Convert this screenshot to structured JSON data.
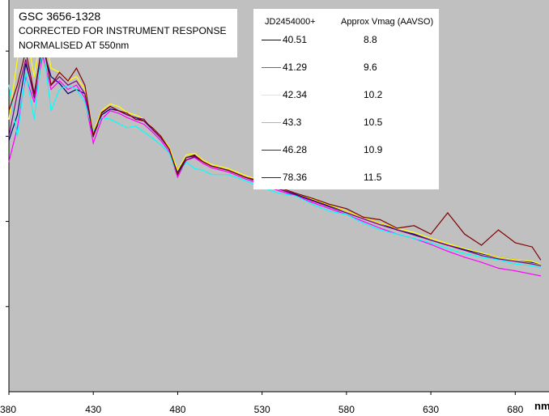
{
  "chart_data": {
    "type": "line",
    "title": "GSC 3656-1328",
    "subtitle_lines": [
      "CORRECTED FOR INSTRUMENT RESPONSE",
      "NORMALISED AT 550nm"
    ],
    "xlabel": "nm",
    "ylabel": "",
    "xlim": [
      380,
      700
    ],
    "x_ticks": [
      380,
      430,
      480,
      530,
      580,
      630,
      680
    ],
    "grid": false,
    "background": "#c0c0c0",
    "legend": {
      "placement": "top-right",
      "col1_header": "JD2454000+",
      "col2_header": "Approx Vmag (AAVSO)"
    },
    "series": [
      {
        "name": "40.51",
        "vmag": "8.8",
        "color": "#000080",
        "x": [
          380,
          385,
          390,
          395,
          400,
          405,
          410,
          415,
          420,
          425,
          430,
          435,
          440,
          445,
          450,
          455,
          460,
          465,
          470,
          475,
          480,
          485,
          490,
          495,
          500,
          510,
          520,
          530,
          540,
          550,
          560,
          570,
          580,
          590,
          600,
          610,
          620,
          630,
          640,
          650,
          660,
          670,
          680,
          690,
          695
        ],
        "y": [
          2.95,
          3.25,
          3.85,
          3.5,
          4.05,
          3.7,
          3.62,
          3.5,
          3.55,
          3.5,
          3.0,
          3.25,
          3.32,
          3.3,
          3.25,
          3.22,
          3.18,
          3.08,
          2.98,
          2.85,
          2.58,
          2.75,
          2.77,
          2.7,
          2.65,
          2.6,
          2.52,
          2.45,
          2.38,
          2.32,
          2.25,
          2.18,
          2.12,
          2.05,
          1.98,
          1.9,
          1.85,
          1.78,
          1.72,
          1.67,
          1.62,
          1.58,
          1.55,
          1.52,
          1.5
        ]
      },
      {
        "name": "41.29",
        "vmag": "9.6",
        "color": "#ff00ff",
        "x": [
          380,
          385,
          390,
          395,
          400,
          405,
          410,
          415,
          420,
          425,
          430,
          435,
          440,
          445,
          450,
          455,
          460,
          465,
          470,
          475,
          480,
          485,
          490,
          495,
          500,
          510,
          520,
          530,
          540,
          550,
          560,
          570,
          580,
          590,
          600,
          610,
          620,
          630,
          640,
          650,
          660,
          670,
          680,
          690,
          695
        ],
        "y": [
          2.7,
          3.1,
          3.7,
          3.4,
          3.95,
          3.55,
          3.65,
          3.55,
          3.6,
          3.45,
          2.92,
          3.2,
          3.3,
          3.27,
          3.22,
          3.18,
          3.14,
          3.05,
          2.95,
          2.82,
          2.52,
          2.72,
          2.75,
          2.68,
          2.63,
          2.58,
          2.5,
          2.43,
          2.36,
          2.3,
          2.22,
          2.15,
          2.08,
          2.0,
          1.92,
          1.85,
          1.8,
          1.73,
          1.65,
          1.58,
          1.52,
          1.45,
          1.42,
          1.38,
          1.36
        ]
      },
      {
        "name": "42.34",
        "vmag": "10.2",
        "color": "#ffff00",
        "x": [
          380,
          385,
          390,
          395,
          400,
          405,
          410,
          415,
          420,
          425,
          430,
          435,
          440,
          445,
          450,
          455,
          460,
          465,
          470,
          475,
          480,
          485,
          490,
          495,
          500,
          510,
          520,
          530,
          540,
          550,
          560,
          570,
          580,
          590,
          600,
          610,
          620,
          630,
          640,
          650,
          660,
          670,
          680,
          690,
          695
        ],
        "y": [
          3.2,
          3.9,
          4.25,
          3.7,
          4.35,
          3.8,
          3.75,
          3.65,
          3.7,
          3.55,
          3.05,
          3.3,
          3.38,
          3.35,
          3.28,
          3.25,
          3.2,
          3.1,
          3.0,
          2.87,
          2.6,
          2.78,
          2.8,
          2.72,
          2.67,
          2.62,
          2.54,
          2.47,
          2.4,
          2.33,
          2.26,
          2.19,
          2.12,
          2.05,
          1.98,
          1.92,
          1.87,
          1.8,
          1.74,
          1.68,
          1.63,
          1.58,
          1.55,
          1.53,
          1.5
        ]
      },
      {
        "name": "43.3",
        "vmag": "10.5",
        "color": "#00ffff",
        "x": [
          380,
          385,
          390,
          395,
          400,
          405,
          410,
          415,
          420,
          425,
          430,
          435,
          440,
          445,
          450,
          455,
          460,
          465,
          470,
          475,
          480,
          485,
          490,
          495,
          500,
          510,
          520,
          530,
          540,
          550,
          560,
          570,
          580,
          590,
          600,
          610,
          620,
          630,
          640,
          650,
          660,
          670,
          680,
          690,
          695
        ],
        "y": [
          3.6,
          3.0,
          3.75,
          3.2,
          4.1,
          3.3,
          3.55,
          3.6,
          3.55,
          3.4,
          3.05,
          3.22,
          3.2,
          3.15,
          3.1,
          3.12,
          3.05,
          2.98,
          2.9,
          2.8,
          2.55,
          2.7,
          2.62,
          2.6,
          2.55,
          2.55,
          2.48,
          2.4,
          2.33,
          2.3,
          2.2,
          2.12,
          2.08,
          1.98,
          1.9,
          1.85,
          1.8,
          1.75,
          1.68,
          1.62,
          1.58,
          1.55,
          1.5,
          1.48,
          1.46
        ]
      },
      {
        "name": "46.28",
        "vmag": "10.9",
        "color": "#800080",
        "x": [
          380,
          385,
          390,
          395,
          400,
          405,
          410,
          415,
          420,
          425,
          430,
          435,
          440,
          445,
          450,
          455,
          460,
          465,
          470,
          475,
          480,
          485,
          490,
          495,
          500,
          510,
          520,
          530,
          540,
          550,
          560,
          570,
          580,
          590,
          600,
          610,
          620,
          630,
          640,
          650,
          660,
          670,
          680,
          690,
          695
        ],
        "y": [
          3.0,
          3.5,
          3.9,
          3.45,
          4.15,
          3.6,
          3.7,
          3.6,
          3.65,
          3.5,
          3.02,
          3.27,
          3.35,
          3.3,
          3.25,
          3.22,
          3.2,
          3.08,
          2.98,
          2.85,
          2.55,
          2.72,
          2.76,
          2.7,
          2.65,
          2.6,
          2.52,
          2.45,
          2.38,
          2.31,
          2.24,
          2.17,
          2.1,
          2.03,
          1.96,
          1.9,
          1.84,
          1.78,
          1.72,
          1.66,
          1.6,
          1.56,
          1.53,
          1.5,
          1.48
        ]
      },
      {
        "name": "78.36",
        "vmag": "11.5",
        "color": "#800000",
        "x": [
          380,
          385,
          390,
          395,
          400,
          405,
          410,
          415,
          420,
          425,
          430,
          435,
          440,
          445,
          450,
          455,
          460,
          465,
          470,
          475,
          480,
          485,
          490,
          495,
          500,
          510,
          520,
          530,
          540,
          550,
          560,
          570,
          580,
          590,
          600,
          610,
          620,
          630,
          640,
          650,
          660,
          670,
          680,
          690,
          695
        ],
        "y": [
          3.3,
          3.6,
          4.0,
          3.5,
          4.1,
          3.6,
          3.75,
          3.65,
          3.8,
          3.6,
          3.0,
          3.28,
          3.35,
          3.3,
          3.27,
          3.2,
          3.18,
          3.1,
          3.0,
          2.85,
          2.55,
          2.75,
          2.78,
          2.7,
          2.65,
          2.6,
          2.52,
          2.47,
          2.4,
          2.33,
          2.27,
          2.2,
          2.15,
          2.05,
          2.02,
          1.92,
          1.95,
          1.85,
          2.1,
          1.85,
          1.72,
          1.9,
          1.75,
          1.7,
          1.55
        ]
      }
    ],
    "ylim": [
      0,
      4.6
    ]
  }
}
